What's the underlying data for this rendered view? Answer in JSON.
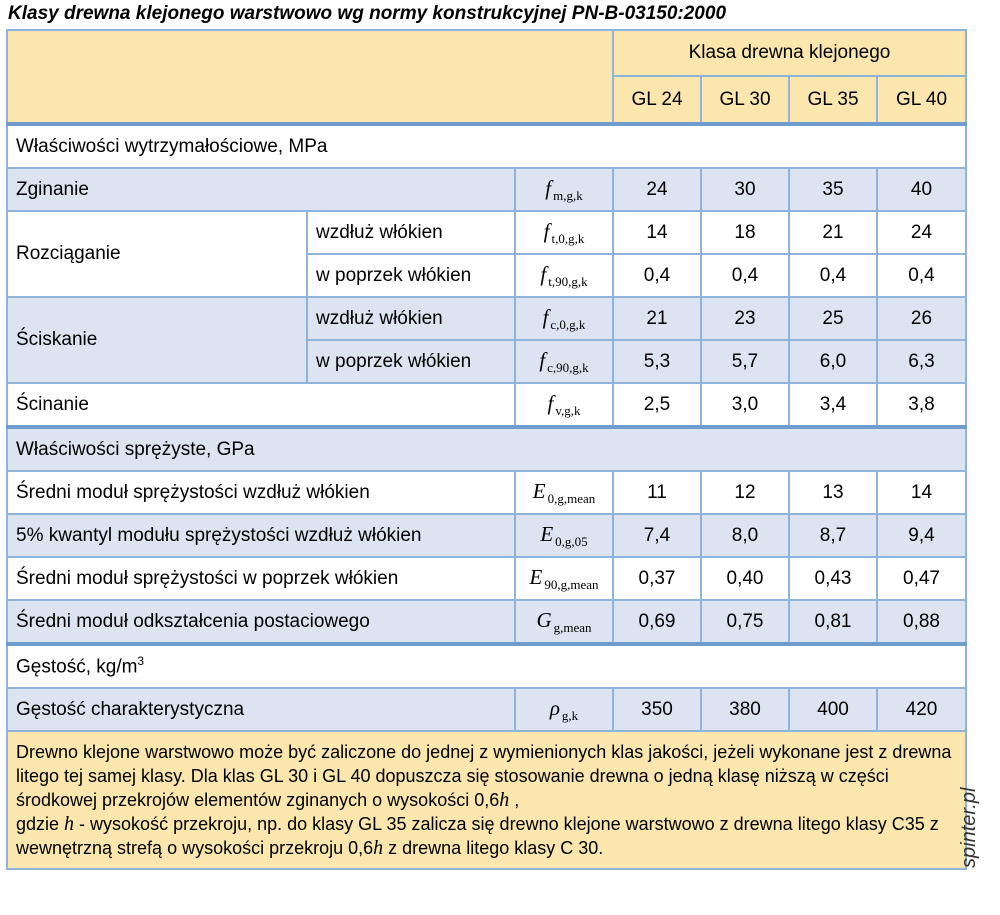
{
  "title": "Klasy drewna klejonego warstwowo wg normy konstrukcyjnej PN-B-03150:2000",
  "watermark": "spinter.pl",
  "header": {
    "group_label": "Klasa drewna klejonego",
    "classes": [
      "GL 24",
      "GL 30",
      "GL 35",
      "GL 40"
    ]
  },
  "sections": {
    "strength": "Właściwości wytrzymałościowe, MPa",
    "elastic": "Właściwości sprężyste, GPa",
    "density_base": "Gęstość, kg/m",
    "density_sup": "3"
  },
  "rows": {
    "bending": {
      "label": "Zginanie",
      "sym": "f",
      "sub": "m,g,k",
      "values": [
        "24",
        "30",
        "35",
        "40"
      ]
    },
    "tension": {
      "label": "Rozciąganie"
    },
    "tension_par": {
      "label": "wzdłuż włókien",
      "sym": "f",
      "sub": "t,0,g,k",
      "values": [
        "14",
        "18",
        "21",
        "24"
      ]
    },
    "tension_perp": {
      "label": "w poprzek włókien",
      "sym": "f",
      "sub": "t,90,g,k",
      "values": [
        "0,4",
        "0,4",
        "0,4",
        "0,4"
      ]
    },
    "compression": {
      "label": "Ściskanie"
    },
    "compression_par": {
      "label": "wzdłuż włókien",
      "sym": "f",
      "sub": "c,0,g,k",
      "values": [
        "21",
        "23",
        "25",
        "26"
      ]
    },
    "compression_perp": {
      "label": "w poprzek włókien",
      "sym": "f",
      "sub": "c,90,g,k",
      "values": [
        "5,3",
        "5,7",
        "6,0",
        "6,3"
      ]
    },
    "shear": {
      "label": "Ścinanie",
      "sym": "f",
      "sub": "v,g,k",
      "values": [
        "2,5",
        "3,0",
        "3,4",
        "3,8"
      ]
    },
    "e0_mean": {
      "label": "Średni moduł sprężystości wzdłuż włókien",
      "sym": "E",
      "sub": "0,g,mean",
      "values": [
        "11",
        "12",
        "13",
        "14"
      ]
    },
    "e0_05": {
      "label": "5% kwantyl modułu sprężystości wzdłuż włókien",
      "sym": "E",
      "sub": "0,g,05",
      "values": [
        "7,4",
        "8,0",
        "8,7",
        "9,4"
      ]
    },
    "e90_mean": {
      "label": "Średni moduł sprężystości w poprzek włókien",
      "sym": "E",
      "sub": "90,g,mean",
      "values": [
        "0,37",
        "0,40",
        "0,43",
        "0,47"
      ]
    },
    "g_mean": {
      "label": "Średni moduł odkształcenia postaciowego",
      "sym": "G",
      "sub": "g,mean",
      "values": [
        "0,69",
        "0,75",
        "0,81",
        "0,88"
      ]
    },
    "density": {
      "label": "Gęstość charakterystyczna",
      "sym": "ρ",
      "sub": "g,k",
      "values": [
        "350",
        "380",
        "400",
        "420"
      ]
    }
  },
  "note": {
    "p1": "Drewno klejone warstwowo może być zaliczone do jednej z wymienionych klas jakości, jeżeli wykonane jest z drewna litego tej samej klasy. Dla klas GL 30 i GL 40 dopuszcza się stosowanie drewna o jedną klasę niższą w części środkowej przekrojów elementów zginanych o wysokości 0,6",
    "h": "h",
    "p2": " ,",
    "p3": "gdzie ",
    "p4": " - wysokość przekroju, np. do klasy GL 35 zalicza się drewno klejone warstwowo z drewna litego klasy C35 z wewnętrzną strefą o wysokości przekroju 0,6",
    "p5": " z drewna litego klasy C 30."
  },
  "colors": {
    "header_bg": "#fbe6ad",
    "row_blue": "#dbe4f0",
    "border": "#8fb4dc"
  }
}
